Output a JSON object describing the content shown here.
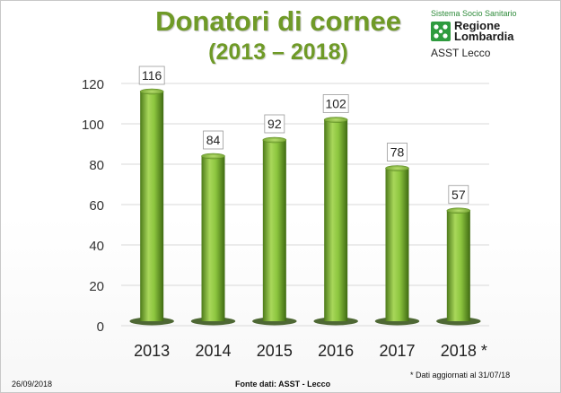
{
  "header": {
    "title": "Donatori di cornee",
    "subtitle": "(2013 – 2018)"
  },
  "logo": {
    "system_label": "Sistema Socio Sanitario",
    "region_line1": "Regione",
    "region_line2": "Lombardia",
    "org": "ASST Lecco",
    "mark_color": "#2e9b3e"
  },
  "footer": {
    "date": "26/09/2018",
    "source": "Fonte dati: ASST - Lecco",
    "note": "* Dati aggiornati al 31/07/18"
  },
  "chart_data": {
    "type": "bar",
    "categories": [
      "2013",
      "2014",
      "2015",
      "2016",
      "2017",
      "2018 *"
    ],
    "values": [
      116,
      84,
      92,
      102,
      78,
      57
    ],
    "title": "",
    "xlabel": "",
    "ylabel": "",
    "ylim": [
      0,
      120
    ],
    "yticks": [
      0,
      20,
      40,
      60,
      80,
      100,
      120
    ],
    "grid": true,
    "legend": "none",
    "bar_color": "#8dc63f",
    "bar_dark": "#4d7a1a"
  }
}
